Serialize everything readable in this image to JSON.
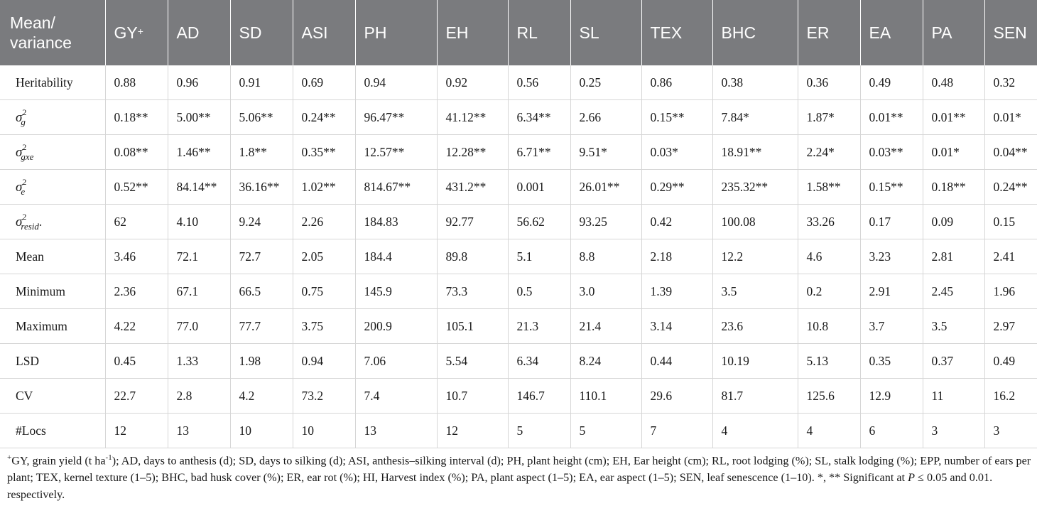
{
  "table": {
    "header_first_line1": "Mean/",
    "header_first_line2": "variance",
    "headers": [
      {
        "label": "GY",
        "sup": "+"
      },
      {
        "label": "AD",
        "sup": ""
      },
      {
        "label": "SD",
        "sup": ""
      },
      {
        "label": "ASI",
        "sup": ""
      },
      {
        "label": "PH",
        "sup": ""
      },
      {
        "label": "EH",
        "sup": ""
      },
      {
        "label": "RL",
        "sup": ""
      },
      {
        "label": "SL",
        "sup": ""
      },
      {
        "label": "TEX",
        "sup": ""
      },
      {
        "label": "BHC",
        "sup": ""
      },
      {
        "label": "ER",
        "sup": ""
      },
      {
        "label": "EA",
        "sup": ""
      },
      {
        "label": "PA",
        "sup": ""
      },
      {
        "label": "SEN",
        "sup": ""
      }
    ],
    "rows": [
      {
        "label": "Heritability",
        "values": [
          "0.88",
          "0.96",
          "0.91",
          "0.69",
          "0.94",
          "0.92",
          "0.56",
          "0.25",
          "0.86",
          "0.38",
          "0.36",
          "0.49",
          "0.48",
          "0.32"
        ]
      },
      {
        "symbol": "σ",
        "sub": "g",
        "sup": "2",
        "suffix": "",
        "values": [
          "0.18**",
          "5.00**",
          "5.06**",
          "0.24**",
          "96.47**",
          "41.12**",
          "6.34**",
          "2.66",
          "0.15**",
          "7.84*",
          "1.87*",
          "0.01**",
          "0.01**",
          "0.01*"
        ]
      },
      {
        "symbol": "σ",
        "sub": "gxe",
        "sup": "2",
        "suffix": "",
        "values": [
          "0.08**",
          "1.46**",
          "1.8**",
          "0.35**",
          "12.57**",
          "12.28**",
          "6.71**",
          "9.51*",
          "0.03*",
          "18.91**",
          "2.24*",
          "0.03**",
          "0.01*",
          "0.04**"
        ]
      },
      {
        "symbol": "σ",
        "sub": "e",
        "sup": "2",
        "suffix": "",
        "values": [
          "0.52**",
          "84.14**",
          "36.16**",
          "1.02**",
          "814.67**",
          "431.2**",
          "0.001",
          "26.01**",
          "0.29**",
          "235.32**",
          "1.58**",
          "0.15**",
          "0.18**",
          "0.24**"
        ]
      },
      {
        "symbol": "σ",
        "sub": "resid",
        "sup": "2",
        "suffix": ".",
        "values": [
          "62",
          "4.10",
          "9.24",
          "2.26",
          "184.83",
          "92.77",
          "56.62",
          "93.25",
          "0.42",
          "100.08",
          "33.26",
          "0.17",
          "0.09",
          "0.15"
        ]
      },
      {
        "label": "Mean",
        "values": [
          "3.46",
          "72.1",
          "72.7",
          "2.05",
          "184.4",
          "89.8",
          "5.1",
          "8.8",
          "2.18",
          "12.2",
          "4.6",
          "3.23",
          "2.81",
          "2.41"
        ]
      },
      {
        "label": "Minimum",
        "values": [
          "2.36",
          "67.1",
          "66.5",
          "0.75",
          "145.9",
          "73.3",
          "0.5",
          "3.0",
          "1.39",
          "3.5",
          "0.2",
          "2.91",
          "2.45",
          "1.96"
        ]
      },
      {
        "label": "Maximum",
        "values": [
          "4.22",
          "77.0",
          "77.7",
          "3.75",
          "200.9",
          "105.1",
          "21.3",
          "21.4",
          "3.14",
          "23.6",
          "10.8",
          "3.7",
          "3.5",
          "2.97"
        ]
      },
      {
        "label": "LSD",
        "values": [
          "0.45",
          "1.33",
          "1.98",
          "0.94",
          "7.06",
          "5.54",
          "6.34",
          "8.24",
          "0.44",
          "10.19",
          "5.13",
          "0.35",
          "0.37",
          "0.49"
        ]
      },
      {
        "label": "CV",
        "values": [
          "22.7",
          "2.8",
          "4.2",
          "73.2",
          "7.4",
          "10.7",
          "146.7",
          "110.1",
          "29.6",
          "81.7",
          "125.6",
          "12.9",
          "11",
          "16.2"
        ]
      },
      {
        "label": "#Locs",
        "values": [
          "12",
          "13",
          "10",
          "10",
          "13",
          "12",
          "5",
          "5",
          "7",
          "4",
          "4",
          "6",
          "3",
          "3"
        ]
      }
    ]
  },
  "footnote": {
    "sup_mark": "+",
    "part1": "GY, grain yield (t ha",
    "unit_sup": "-1",
    "part2": "); AD, days to anthesis (d); SD, days to silking (d); ASI, anthesis–silking interval (d); PH, plant height (cm); EH, Ear height (cm); RL, root lodging (%); SL, stalk lodging (%); EPP, number of ears per plant; TEX, kernel texture (1–5); BHC, bad husk cover (%); ER, ear rot (%); HI, Harvest index (%); PA, plant aspect (1–5); EA, ear aspect (1–5); SEN, leaf senescence (1–10). *, ** Significant at ",
    "p_symbol": "P",
    "part3": " ≤ 0.05 and 0.01. respectively."
  }
}
